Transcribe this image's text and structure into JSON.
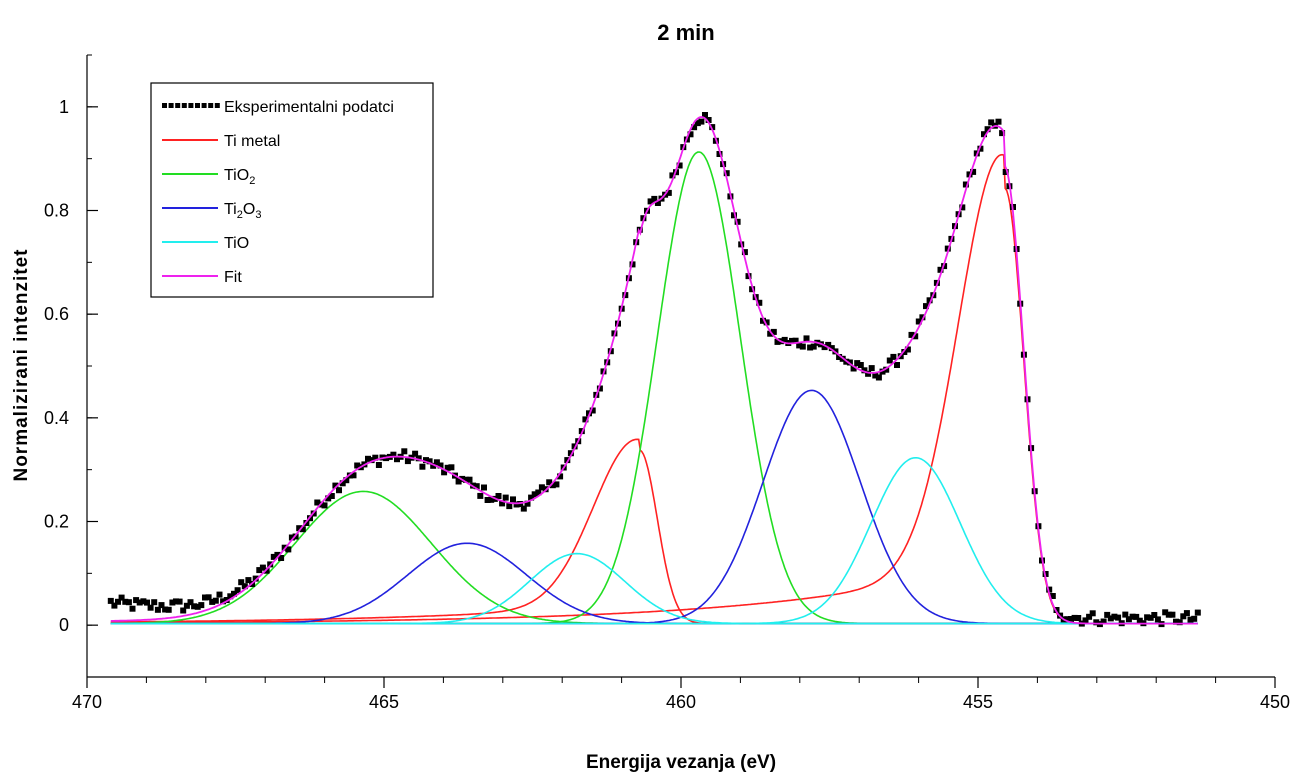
{
  "chart_data": {
    "type": "line",
    "title": "2 min",
    "xlabel": "Energija vezanja (eV)",
    "ylabel": "Normalizirani intenzitet",
    "xlim": [
      470,
      450
    ],
    "xaxis_reversed": true,
    "ylim": [
      -0.1,
      1.1
    ],
    "xticks": [
      470,
      465,
      460,
      455,
      450
    ],
    "yticks": [
      0,
      0.2,
      0.4,
      0.6,
      0.8,
      1
    ],
    "ytick_labels": [
      "0",
      "0.2",
      "0.4",
      "0.6",
      "0.8",
      "1"
    ],
    "grid": false,
    "legend_position": "top-left",
    "legend": [
      {
        "label": "Eksperimentalni podatci",
        "color": "#000000",
        "style": "dotted"
      },
      {
        "label_main": "Ti metal",
        "label_sub": "",
        "label_tail": "",
        "color": "#ff2222",
        "style": "line"
      },
      {
        "label_main": "TiO",
        "label_sub": "2",
        "label_tail": "",
        "color": "#22dd22",
        "style": "line"
      },
      {
        "label_main": "Ti",
        "label_sub": "2",
        "label_tail": "O",
        "label_sub2": "3",
        "color": "#2222dd",
        "style": "line"
      },
      {
        "label_main": "TiO",
        "label_sub": "",
        "label_tail": "",
        "color": "#22eeee",
        "style": "line"
      },
      {
        "label_main": "Fit",
        "label_sub": "",
        "label_tail": "",
        "color": "#ee22ee",
        "style": "line"
      }
    ],
    "x_range": [
      469.6,
      451.3
    ],
    "background": 0.003,
    "components": [
      {
        "name": "Ti metal",
        "color": "#ff2222",
        "center": 454.55,
        "amplitude": 0.84,
        "sigma_low_energy": 0.32,
        "sigma_high_energy": 0.75,
        "tail": 0.15,
        "tail_decay": 3.5
      },
      {
        "name": "Ti metal",
        "color": "#ff2222",
        "center": 460.7,
        "amplitude": 0.335,
        "sigma_low_energy": 0.3,
        "sigma_high_energy": 0.75,
        "tail": 0.12,
        "tail_decay": 3.5
      },
      {
        "name": "TiO2",
        "color": "#22dd22",
        "center": 459.7,
        "amplitude": 0.91,
        "sigma": 0.7
      },
      {
        "name": "TiO2",
        "color": "#22dd22",
        "center": 465.35,
        "amplitude": 0.255,
        "sigma": 1.15
      },
      {
        "name": "Ti2O3",
        "color": "#2222dd",
        "center": 457.8,
        "amplitude": 0.45,
        "sigma": 0.82
      },
      {
        "name": "Ti2O3",
        "color": "#2222dd",
        "center": 463.6,
        "amplitude": 0.155,
        "sigma": 1.0
      },
      {
        "name": "TiO",
        "color": "#22eeee",
        "center": 456.05,
        "amplitude": 0.32,
        "sigma": 0.75
      },
      {
        "name": "TiO",
        "color": "#22eeee",
        "center": 461.75,
        "amplitude": 0.135,
        "sigma": 0.8
      }
    ],
    "fit_color": "#ee22ee",
    "experimental_color": "#000000",
    "experimental_points": 300,
    "experimental_noise": 0.012,
    "experimental_low_be_offset": 0.01,
    "experimental_high_be_offset": 0.035
  }
}
